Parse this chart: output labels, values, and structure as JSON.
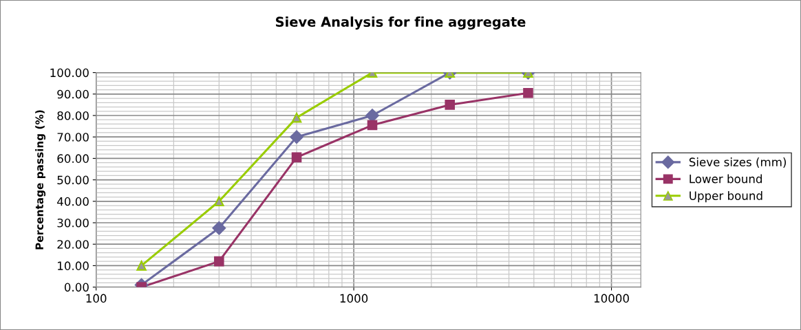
{
  "chart_data": {
    "type": "line",
    "title": "Sieve Analysis for fine aggregate",
    "ylabel": "Percentage passing (%)",
    "x": [
      150,
      300,
      600,
      1180,
      2360,
      4750
    ],
    "series": [
      {
        "name": "Sieve sizes (mm)",
        "color": "#6a6aa0",
        "marker": "diamond",
        "values": [
          1,
          27.5,
          70,
          80,
          100,
          100
        ]
      },
      {
        "name": "Lower bound",
        "color": "#993366",
        "marker": "square",
        "values": [
          0,
          12,
          60.5,
          75.5,
          85,
          90.5
        ]
      },
      {
        "name": "Upper bound",
        "color": "#99cc00",
        "marker": "triangle",
        "values": [
          10,
          40,
          79,
          100,
          100,
          100
        ]
      }
    ],
    "log": "x",
    "xlim": [
      100,
      13000
    ],
    "xticks": [
      100,
      1000,
      10000
    ],
    "ylim": [
      0,
      100
    ],
    "yticks": [
      {
        "value": 0,
        "label": "0.00"
      },
      {
        "value": 10,
        "label": "10.00"
      },
      {
        "value": 20,
        "label": "20.00"
      },
      {
        "value": 30,
        "label": "30.00"
      },
      {
        "value": 40,
        "label": "40.00"
      },
      {
        "value": 50,
        "label": "50.00"
      },
      {
        "value": 60,
        "label": "60.00"
      },
      {
        "value": 70,
        "label": "70.00"
      },
      {
        "value": 80,
        "label": "80.00"
      },
      {
        "value": 90,
        "label": "90.00"
      },
      {
        "value": 100,
        "label": "100.00"
      }
    ],
    "grid": true,
    "legend": "right",
    "line_style": "solid"
  }
}
